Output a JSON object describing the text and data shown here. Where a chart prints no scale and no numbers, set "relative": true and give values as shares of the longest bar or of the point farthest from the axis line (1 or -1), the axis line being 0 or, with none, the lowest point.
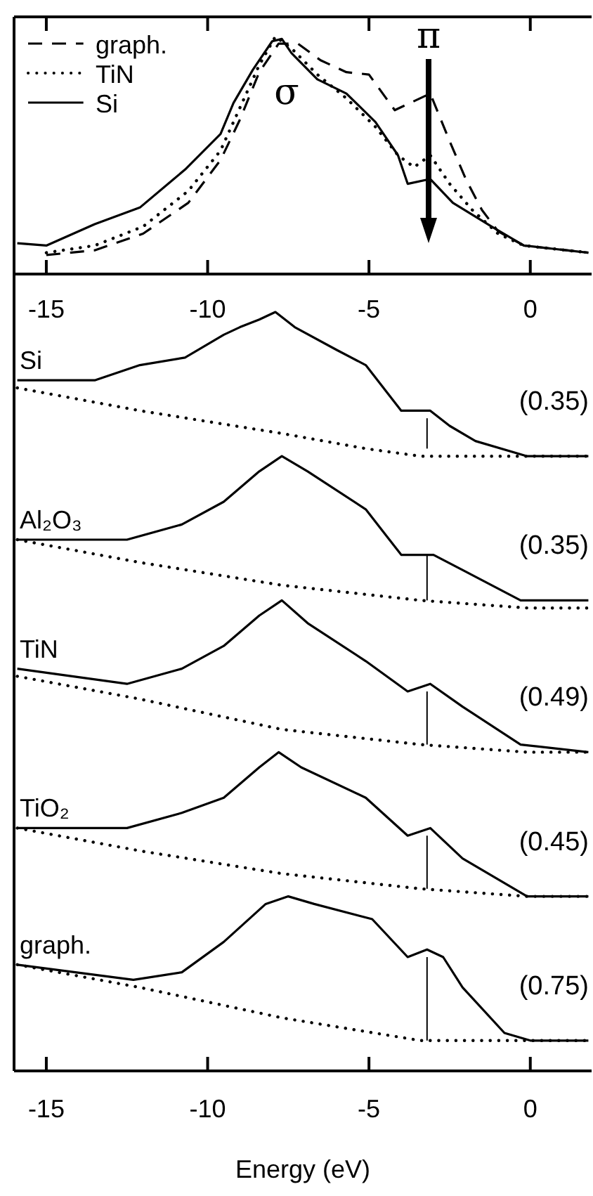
{
  "chart_data": [
    {
      "type": "line",
      "relative": true,
      "xlim": [
        -16,
        1.9
      ],
      "xticks": [
        -15,
        -10,
        -5,
        0
      ],
      "tick_labels": "x",
      "legend": "top left",
      "annotations": [
        "σ",
        "π"
      ],
      "series": [
        {
          "name": "graph.",
          "color": "#000000",
          "line_style": "dashed",
          "x": [
            -15,
            -13.5,
            -12,
            -10.6,
            -9.6,
            -9.0,
            -8.4,
            -7.8,
            -7.2,
            -6.5,
            -5.7,
            -5.0,
            -4.2,
            -3.1,
            -2.5,
            -2.0,
            -1.5,
            -1.0,
            -0.2,
            1.8
          ],
          "values": [
            0.08,
            0.1,
            0.17,
            0.3,
            0.48,
            0.65,
            0.85,
            0.97,
            0.97,
            0.9,
            0.85,
            0.84,
            0.69,
            0.76,
            0.56,
            0.4,
            0.27,
            0.18,
            0.12,
            0.09
          ]
        },
        {
          "name": "TiN",
          "color": "#000000",
          "line_style": "dotted",
          "x": [
            -15,
            -13.5,
            -12,
            -10.6,
            -9.6,
            -9.0,
            -8.4,
            -7.9,
            -7.4,
            -6.6,
            -5.7,
            -4.8,
            -4.1,
            -3.6,
            -3.1,
            -2.5,
            -1.8,
            -1.0,
            -0.2,
            1.8
          ],
          "values": [
            0.09,
            0.12,
            0.2,
            0.35,
            0.52,
            0.7,
            0.88,
            1.0,
            0.95,
            0.84,
            0.74,
            0.62,
            0.5,
            0.45,
            0.5,
            0.38,
            0.27,
            0.17,
            0.12,
            0.09
          ]
        },
        {
          "name": "Si",
          "color": "#000000",
          "line_style": "solid",
          "x": [
            -15.9,
            -15,
            -13.5,
            -12.1,
            -10.7,
            -9.6,
            -9.2,
            -8.6,
            -8.0,
            -7.7,
            -7.4,
            -6.6,
            -5.7,
            -4.8,
            -4.1,
            -3.8,
            -3.1,
            -2.4,
            -1.2,
            -0.2,
            1.8
          ],
          "values": [
            0.13,
            0.12,
            0.21,
            0.28,
            0.44,
            0.59,
            0.72,
            0.86,
            0.98,
            0.99,
            0.93,
            0.82,
            0.76,
            0.64,
            0.5,
            0.38,
            0.4,
            0.3,
            0.2,
            0.12,
            0.09
          ]
        }
      ]
    },
    {
      "type": "line",
      "relative": true,
      "xlim": [
        -16,
        1.9
      ],
      "xticks": [
        -15,
        -10,
        -5,
        0
      ],
      "xlabel": "Energy (eV)",
      "annotations": [
        "(0.35)",
        "(0.35)",
        "(0.49)",
        "(0.45)",
        "(0.75)"
      ],
      "series": [
        {
          "name": "Si",
          "color": "#000000",
          "line_style": "solid",
          "x": [
            -15.9,
            -15,
            -13.5,
            -12.1,
            -10.7,
            -9.5,
            -9.0,
            -8.4,
            -7.9,
            -7.3,
            -6.0,
            -5.1,
            -4.0,
            -3.6,
            -3.1,
            -2.5,
            -1.7,
            -0.1,
            1.8
          ],
          "values": [
            0.91,
            0.91,
            0.91,
            0.93,
            0.94,
            0.97,
            0.98,
            0.99,
            1.0,
            0.98,
            0.95,
            0.93,
            0.87,
            0.87,
            0.87,
            0.85,
            0.83,
            0.81,
            0.81
          ]
        },
        {
          "color": "#000000",
          "line_style": "dotted",
          "x": [
            -15.9,
            -12.1,
            -7.7,
            -5.1,
            -3.4,
            -0.1,
            1.8
          ],
          "values": [
            0.9,
            0.87,
            0.84,
            0.82,
            0.81,
            0.81,
            0.81
          ]
        },
        {
          "color": "#000000",
          "line_style": "solid",
          "x": [
            -3.2,
            -3.2
          ],
          "values": [
            0.86,
            0.82
          ]
        },
        {
          "name": "Al₂O₃",
          "color": "#000000",
          "line_style": "solid",
          "x": [
            -15.9,
            -12.5,
            -10.8,
            -9.5,
            -8.4,
            -7.7,
            -6.9,
            -5.1,
            -4.0,
            -3.6,
            -3.0,
            -2.1,
            -0.3,
            1.8
          ],
          "values": [
            0.7,
            0.7,
            0.72,
            0.75,
            0.79,
            0.81,
            0.79,
            0.74,
            0.68,
            0.68,
            0.68,
            0.66,
            0.62,
            0.62
          ]
        },
        {
          "color": "#000000",
          "line_style": "dotted",
          "x": [
            -15.9,
            -12.1,
            -7.7,
            -3.4,
            -0.1,
            1.8
          ],
          "values": [
            0.7,
            0.67,
            0.64,
            0.62,
            0.61,
            0.61
          ]
        },
        {
          "color": "#000000",
          "line_style": "solid",
          "x": [
            -3.2,
            -3.2
          ],
          "values": [
            0.68,
            0.62
          ]
        },
        {
          "name": "TiN",
          "color": "#000000",
          "line_style": "solid",
          "x": [
            -15.9,
            -12.5,
            -10.8,
            -9.5,
            -8.4,
            -7.7,
            -6.9,
            -5.1,
            -3.8,
            -3.1,
            -2.1,
            -0.3,
            1.8
          ],
          "values": [
            0.53,
            0.51,
            0.53,
            0.56,
            0.6,
            0.62,
            0.59,
            0.54,
            0.5,
            0.51,
            0.48,
            0.43,
            0.42
          ]
        },
        {
          "color": "#000000",
          "line_style": "dotted",
          "x": [
            -15.9,
            -12.1,
            -7.7,
            -3.4,
            -0.1,
            1.8
          ],
          "values": [
            0.52,
            0.49,
            0.45,
            0.43,
            0.42,
            0.42
          ]
        },
        {
          "color": "#000000",
          "line_style": "solid",
          "x": [
            -3.2,
            -3.2
          ],
          "values": [
            0.5,
            0.43
          ]
        },
        {
          "name": "TiO₂",
          "color": "#000000",
          "line_style": "solid",
          "x": [
            -15.9,
            -12.5,
            -10.8,
            -9.5,
            -8.4,
            -7.8,
            -7.1,
            -5.1,
            -3.8,
            -3.1,
            -2.1,
            -0.1,
            1.8
          ],
          "values": [
            0.32,
            0.32,
            0.34,
            0.36,
            0.4,
            0.42,
            0.4,
            0.36,
            0.31,
            0.32,
            0.28,
            0.23,
            0.23
          ]
        },
        {
          "color": "#000000",
          "line_style": "dotted",
          "x": [
            -15.9,
            -12.1,
            -7.7,
            -3.4,
            -0.1,
            1.8
          ],
          "values": [
            0.32,
            0.29,
            0.26,
            0.24,
            0.23,
            0.23
          ]
        },
        {
          "color": "#000000",
          "line_style": "solid",
          "x": [
            -3.2,
            -3.2
          ],
          "values": [
            0.31,
            0.24
          ]
        },
        {
          "name": "graph.",
          "color": "#000000",
          "line_style": "solid",
          "x": [
            -15.9,
            -12.3,
            -10.8,
            -9.5,
            -8.2,
            -7.5,
            -6.7,
            -4.9,
            -3.8,
            -3.2,
            -2.7,
            -2.1,
            -0.8,
            0,
            1.8
          ],
          "values": [
            0.14,
            0.12,
            0.13,
            0.17,
            0.22,
            0.23,
            0.22,
            0.2,
            0.15,
            0.16,
            0.15,
            0.11,
            0.05,
            0.04,
            0.04
          ]
        },
        {
          "color": "#000000",
          "line_style": "dotted",
          "x": [
            -15.9,
            -12.1,
            -7.7,
            -3.4,
            -0.1,
            1.8
          ],
          "values": [
            0.14,
            0.11,
            0.07,
            0.04,
            0.04,
            0.04
          ]
        },
        {
          "color": "#000000",
          "line_style": "solid",
          "x": [
            -3.2,
            -3.2
          ],
          "values": [
            0.15,
            0.04
          ]
        }
      ]
    }
  ]
}
